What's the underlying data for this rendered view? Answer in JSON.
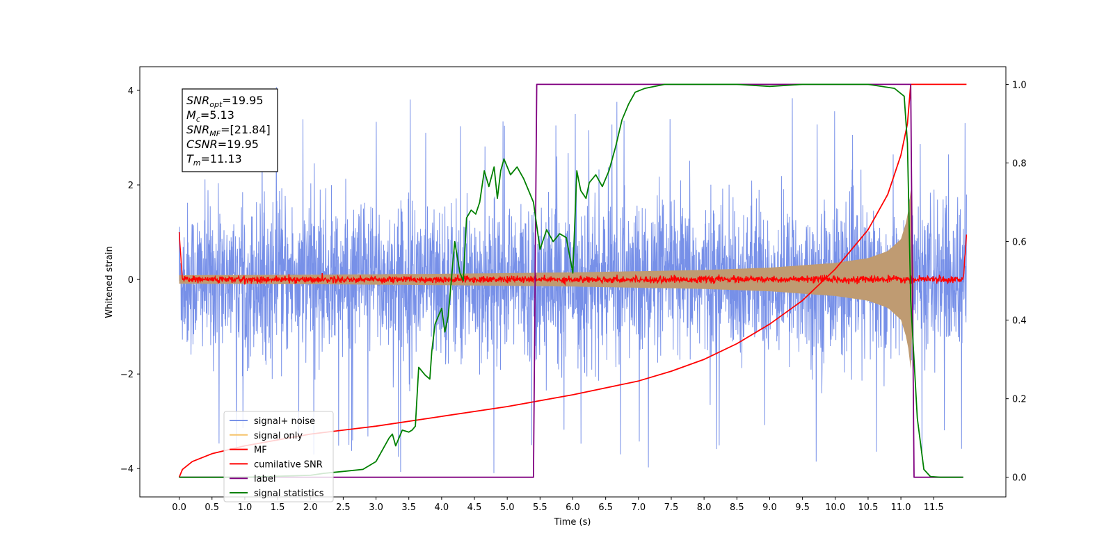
{
  "chart_data": {
    "type": "line",
    "xlabel": "Time (s)",
    "ylabel_left": "Whitened strain",
    "ylabel_right": "",
    "xlim": [
      -0.6,
      12.6
    ],
    "ylim_left": [
      -4.6,
      4.5
    ],
    "ylim_right": [
      -0.05,
      1.045
    ],
    "x_ticks": [
      0.0,
      0.5,
      1.0,
      1.5,
      2.0,
      2.5,
      3.0,
      3.5,
      4.0,
      4.5,
      5.0,
      5.5,
      6.0,
      6.5,
      7.0,
      7.5,
      8.0,
      8.5,
      9.0,
      9.5,
      10.0,
      10.5,
      11.0,
      11.5
    ],
    "x_tick_labels": [
      "0.0",
      "0.5",
      "1.0",
      "1.5",
      "2.0",
      "2.5",
      "3.0",
      "3.5",
      "4.0",
      "4.5",
      "5.0",
      "5.5",
      "6.0",
      "6.5",
      "7.0",
      "7.5",
      "8.0",
      "8.5",
      "9.0",
      "9.5",
      "10.0",
      "10.5",
      "11.0",
      "11.5"
    ],
    "y_left_ticks": [
      -4,
      -2,
      0,
      2,
      4
    ],
    "y_left_tick_labels": [
      "−4",
      "−2",
      "0",
      "2",
      "4"
    ],
    "y_right_ticks": [
      0.0,
      0.2,
      0.4,
      0.6,
      0.8,
      1.0
    ],
    "y_right_tick_labels": [
      "0.0",
      "0.2",
      "0.4",
      "0.6",
      "0.8",
      "1.0"
    ],
    "grid": false,
    "legend_position": "lower-left",
    "series": [
      {
        "name": "signal+ noise",
        "axis": "left",
        "color": "#6b87e6",
        "style": "noise",
        "x_range": [
          0.0,
          12.0
        ],
        "typical_amplitude": 1.6,
        "peak_amplitude": 4.1
      },
      {
        "name": "signal only",
        "axis": "left",
        "color": "#f5c36b",
        "style": "chirp-envelope",
        "x_range": [
          0.0,
          11.15
        ],
        "envelope": {
          "x": [
            0.0,
            2.0,
            4.0,
            6.0,
            8.0,
            9.0,
            10.0,
            10.5,
            10.8,
            11.0,
            11.1,
            11.15
          ],
          "y": [
            0.09,
            0.1,
            0.12,
            0.15,
            0.2,
            0.25,
            0.35,
            0.45,
            0.6,
            0.85,
            1.3,
            1.9
          ]
        }
      },
      {
        "name": "MF",
        "axis": "left",
        "color": "#ff0000",
        "style": "noise-small",
        "x_range": [
          0.0,
          12.0
        ],
        "start_value": 1.0,
        "end_value": 0.93,
        "typical_amplitude": 0.07
      },
      {
        "name": "cumilative SNR",
        "axis": "right",
        "color": "#ff0000",
        "style": "line",
        "x": [
          0.0,
          0.05,
          0.2,
          0.5,
          1.0,
          1.5,
          2.0,
          3.0,
          4.0,
          5.0,
          6.0,
          7.0,
          7.5,
          8.0,
          8.5,
          9.0,
          9.5,
          10.0,
          10.5,
          10.8,
          11.0,
          11.1,
          11.15,
          12.0
        ],
        "values": [
          0.0,
          0.02,
          0.04,
          0.06,
          0.08,
          0.095,
          0.11,
          0.13,
          0.155,
          0.18,
          0.21,
          0.245,
          0.27,
          0.3,
          0.34,
          0.39,
          0.45,
          0.53,
          0.63,
          0.72,
          0.82,
          0.9,
          1.0,
          1.0
        ]
      },
      {
        "name": "label",
        "axis": "right",
        "color": "#800080",
        "style": "line",
        "x": [
          0.0,
          5.4,
          5.45,
          11.15,
          11.2,
          11.95
        ],
        "values": [
          0.0,
          0.0,
          1.0,
          1.0,
          0.0,
          0.0
        ]
      },
      {
        "name": "signal statistics",
        "axis": "right",
        "color": "#008000",
        "style": "line",
        "x": [
          0.0,
          1.0,
          2.0,
          2.2,
          2.5,
          2.8,
          3.0,
          3.2,
          3.25,
          3.3,
          3.4,
          3.5,
          3.55,
          3.6,
          3.65,
          3.75,
          3.82,
          3.85,
          3.9,
          4.0,
          4.05,
          4.1,
          4.2,
          4.28,
          4.33,
          4.38,
          4.45,
          4.52,
          4.58,
          4.65,
          4.72,
          4.8,
          4.85,
          4.9,
          4.95,
          5.05,
          5.15,
          5.25,
          5.3,
          5.4,
          5.45,
          5.5,
          5.6,
          5.7,
          5.8,
          5.9,
          6.0,
          6.06,
          6.12,
          6.2,
          6.25,
          6.35,
          6.45,
          6.55,
          6.65,
          6.75,
          6.85,
          6.95,
          7.1,
          7.4,
          7.8,
          8.5,
          9.0,
          9.5,
          10.0,
          10.5,
          10.9,
          11.05,
          11.1,
          11.15,
          11.25,
          11.35,
          11.45,
          11.6,
          11.95
        ],
        "values": [
          0.0,
          0.0,
          0.005,
          0.01,
          0.015,
          0.02,
          0.04,
          0.1,
          0.11,
          0.08,
          0.12,
          0.115,
          0.12,
          0.13,
          0.28,
          0.26,
          0.25,
          0.32,
          0.39,
          0.43,
          0.37,
          0.41,
          0.6,
          0.52,
          0.5,
          0.66,
          0.68,
          0.67,
          0.7,
          0.78,
          0.74,
          0.79,
          0.71,
          0.78,
          0.81,
          0.77,
          0.79,
          0.76,
          0.74,
          0.7,
          0.64,
          0.58,
          0.63,
          0.6,
          0.62,
          0.61,
          0.52,
          0.78,
          0.73,
          0.71,
          0.75,
          0.77,
          0.74,
          0.78,
          0.84,
          0.91,
          0.95,
          0.98,
          0.99,
          1.0,
          1.0,
          1.0,
          0.995,
          1.0,
          1.0,
          1.0,
          0.99,
          0.97,
          0.85,
          0.45,
          0.15,
          0.02,
          0.002,
          0.0,
          0.0
        ]
      }
    ],
    "info_box": [
      {
        "var": "SNR",
        "sub": "opt",
        "value": "=19.95"
      },
      {
        "var": "M",
        "sub": "c",
        "value": "=5.13"
      },
      {
        "var": "SNR",
        "sub": "MF",
        "value": "=[21.84]"
      },
      {
        "var": "CSNR",
        "sub": "",
        "value": "=19.95"
      },
      {
        "var": "T",
        "sub": "m",
        "value": "=11.13"
      }
    ]
  }
}
